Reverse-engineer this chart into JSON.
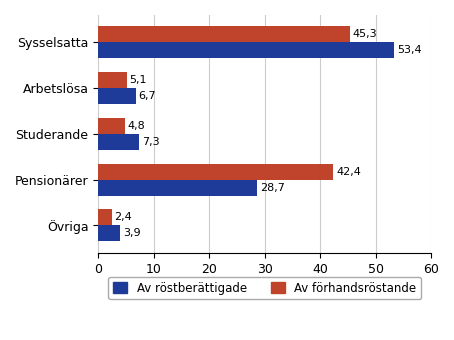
{
  "categories": [
    "Sysselsatta",
    "Arbetslösa",
    "Studerande",
    "Pensionärer",
    "Övriga"
  ],
  "blue_values": [
    53.4,
    6.7,
    7.3,
    28.7,
    3.9
  ],
  "red_values": [
    45.3,
    5.1,
    4.8,
    42.4,
    2.4
  ],
  "blue_color": "#1F3B99",
  "red_color": "#C0442B",
  "xlim": [
    0,
    60
  ],
  "xticks": [
    0,
    10,
    20,
    30,
    40,
    50,
    60
  ],
  "blue_label": "Av röstberättigade",
  "red_label": "Av förhandsRöstande",
  "bar_height": 0.35,
  "background_color": "#ffffff",
  "grid_color": "#cccccc",
  "value_fontsize": 8,
  "label_fontsize": 9,
  "legend_fontsize": 8.5
}
